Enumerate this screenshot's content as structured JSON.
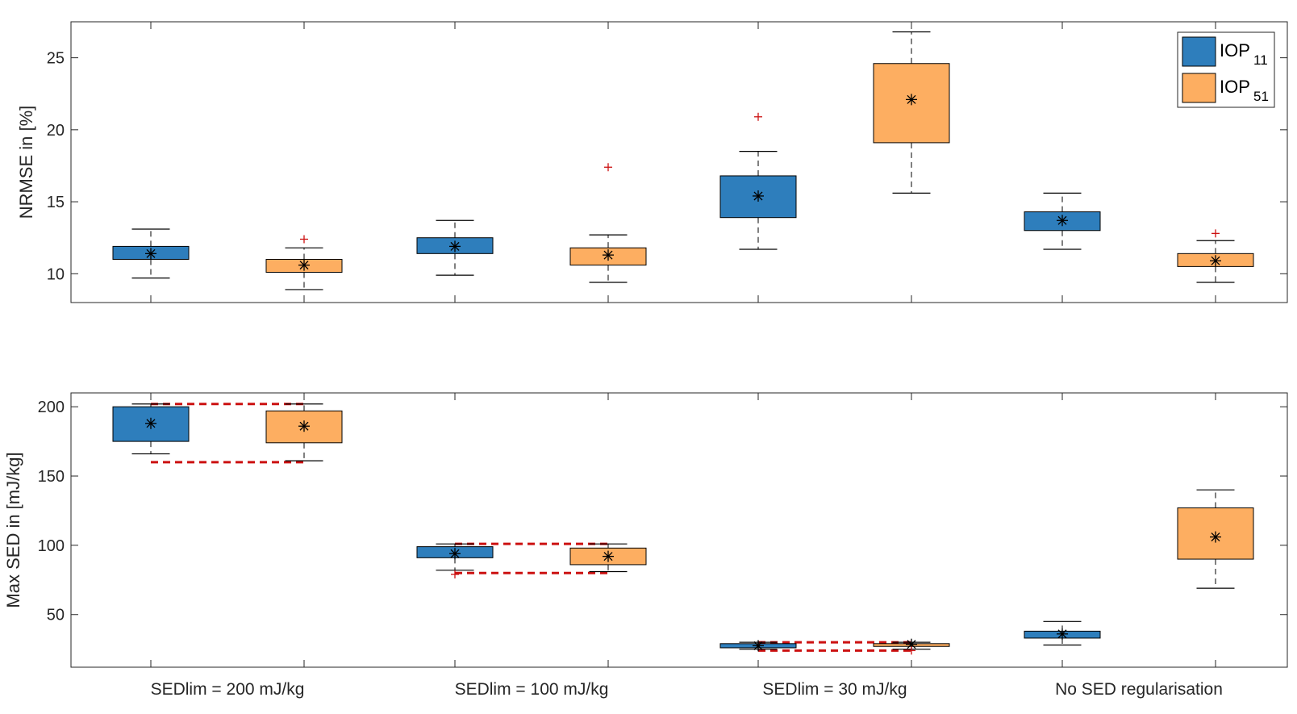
{
  "colors": {
    "iop11": "#2e7ebc",
    "iop51": "#fdae61",
    "limit_line": "#cc1111",
    "outlier": "#cc1111",
    "axis": "#262626",
    "median": "#000000"
  },
  "chart_data": [
    {
      "type": "box",
      "id": "nrmse",
      "ylabel": "NRMSE in [%]",
      "xlabel": "",
      "ylim": [
        8,
        27.5
      ],
      "yticks": [
        10,
        15,
        20,
        25
      ],
      "categories": [
        "SEDlim = 200 mJ/kg",
        "SEDlim = 100 mJ/kg",
        "SEDlim = 30 mJ/kg",
        "No SED regularisation"
      ],
      "legend": {
        "position": "top-right",
        "entries": [
          {
            "label": "IOP",
            "subscript": "11",
            "color_key": "iop11"
          },
          {
            "label": "IOP",
            "subscript": "51",
            "color_key": "iop51"
          }
        ]
      },
      "series": [
        {
          "name": "IOP11",
          "color_key": "iop11",
          "boxes": [
            {
              "q1": 11.0,
              "q3": 11.9,
              "median": 11.4,
              "whisker_low": 9.7,
              "whisker_high": 13.1,
              "outliers": []
            },
            {
              "q1": 11.4,
              "q3": 12.5,
              "median": 11.9,
              "whisker_low": 9.9,
              "whisker_high": 13.7,
              "outliers": []
            },
            {
              "q1": 13.9,
              "q3": 16.8,
              "median": 15.4,
              "whisker_low": 11.7,
              "whisker_high": 18.5,
              "outliers": [
                20.9
              ]
            },
            {
              "q1": 13.0,
              "q3": 14.3,
              "median": 13.7,
              "whisker_low": 11.7,
              "whisker_high": 15.6,
              "outliers": []
            }
          ]
        },
        {
          "name": "IOP51",
          "color_key": "iop51",
          "boxes": [
            {
              "q1": 10.1,
              "q3": 11.0,
              "median": 10.6,
              "whisker_low": 8.9,
              "whisker_high": 11.8,
              "outliers": [
                12.4
              ]
            },
            {
              "q1": 10.6,
              "q3": 11.8,
              "median": 11.3,
              "whisker_low": 9.4,
              "whisker_high": 12.7,
              "outliers": [
                17.4
              ]
            },
            {
              "q1": 19.1,
              "q3": 24.6,
              "median": 22.1,
              "whisker_low": 15.6,
              "whisker_high": 26.8,
              "outliers": []
            },
            {
              "q1": 10.5,
              "q3": 11.4,
              "median": 10.9,
              "whisker_low": 9.4,
              "whisker_high": 12.3,
              "outliers": [
                12.8
              ]
            }
          ]
        }
      ]
    },
    {
      "type": "box",
      "id": "maxsed",
      "ylabel": "Max SED in [mJ/kg]",
      "xlabel": "",
      "ylim": [
        12,
        210
      ],
      "yticks": [
        50,
        100,
        150,
        200
      ],
      "categories": [
        "SEDlim = 200 mJ/kg",
        "SEDlim = 100 mJ/kg",
        "SEDlim = 30 mJ/kg",
        "No SED regularisation"
      ],
      "series": [
        {
          "name": "IOP11",
          "color_key": "iop11",
          "boxes": [
            {
              "q1": 175,
              "q3": 200,
              "median": 188,
              "whisker_low": 166,
              "whisker_high": 202,
              "outliers": []
            },
            {
              "q1": 91,
              "q3": 99,
              "median": 94,
              "whisker_low": 82,
              "whisker_high": 101,
              "outliers": [
                79
              ]
            },
            {
              "q1": 26,
              "q3": 29,
              "median": 27.5,
              "whisker_low": 25,
              "whisker_high": 30,
              "outliers": []
            },
            {
              "q1": 33,
              "q3": 38,
              "median": 36,
              "whisker_low": 28,
              "whisker_high": 45,
              "outliers": []
            }
          ]
        },
        {
          "name": "IOP51",
          "color_key": "iop51",
          "boxes": [
            {
              "q1": 174,
              "q3": 197,
              "median": 186,
              "whisker_low": 161,
              "whisker_high": 202,
              "outliers": []
            },
            {
              "q1": 86,
              "q3": 98,
              "median": 92,
              "whisker_low": 81,
              "whisker_high": 101,
              "outliers": []
            },
            {
              "q1": 27,
              "q3": 29,
              "median": 28.5,
              "whisker_low": 25,
              "whisker_high": 30,
              "outliers": [
                24
              ]
            },
            {
              "q1": 90,
              "q3": 127,
              "median": 106,
              "whisker_low": 69,
              "whisker_high": 140,
              "outliers": []
            }
          ]
        }
      ],
      "limit_bands": [
        {
          "category_index": 0,
          "upper": 202,
          "lower": 160
        },
        {
          "category_index": 1,
          "upper": 101,
          "lower": 80
        },
        {
          "category_index": 2,
          "upper": 30,
          "lower": 24
        }
      ]
    }
  ]
}
